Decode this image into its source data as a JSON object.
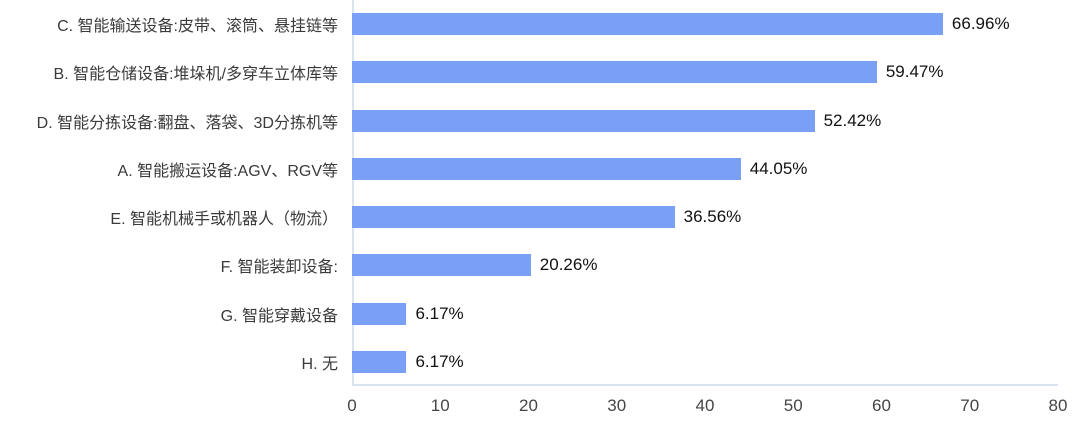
{
  "chart_data": {
    "type": "bar",
    "orientation": "horizontal",
    "title": "",
    "xlabel": "",
    "ylabel": "",
    "categories": [
      "C. 智能输送设备:皮带、滚筒、悬挂链等",
      "B. 智能仓储设备:堆垛机/多穿车立体库等",
      "D. 智能分拣设备:翻盘、落袋、3D分拣机等",
      "A. 智能搬运设备:AGV、RGV等",
      "E. 智能机械手或机器人（物流）",
      "F. 智能装卸设备:",
      "G. 智能穿戴设备",
      "H. 无"
    ],
    "values": [
      66.96,
      59.47,
      52.42,
      44.05,
      36.56,
      20.26,
      6.17,
      6.17
    ],
    "value_labels": [
      "66.96%",
      "59.47%",
      "52.42%",
      "44.05%",
      "36.56%",
      "20.26%",
      "6.17%",
      "6.17%"
    ],
    "xlim": [
      0,
      80
    ],
    "x_ticks": [
      "0",
      "10",
      "20",
      "30",
      "40",
      "50",
      "60",
      "70",
      "80"
    ],
    "grid": false,
    "legend": null,
    "bar_color": "#7aa0f6",
    "axis_line_color": "#d9e3f2",
    "label_color": "#3b3b3b",
    "value_color": "#111111",
    "tick_color": "#454545"
  }
}
